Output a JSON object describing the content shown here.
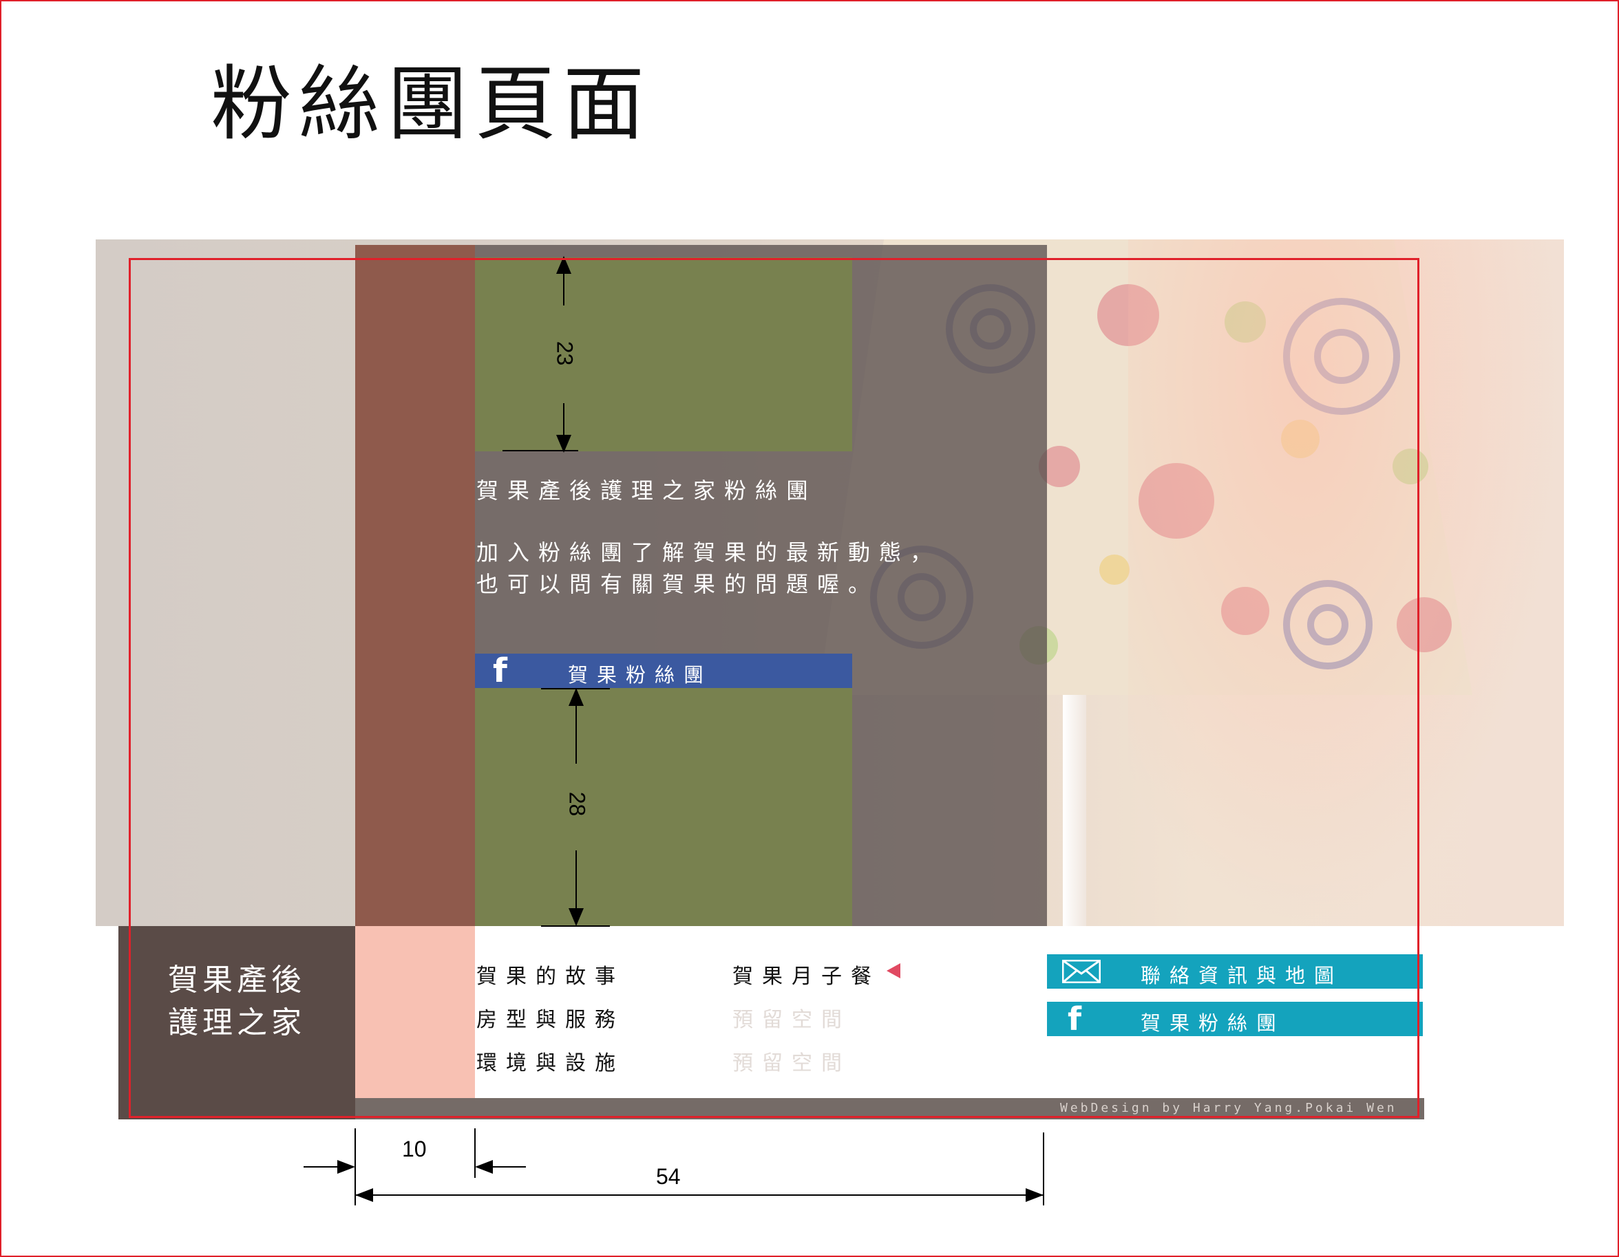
{
  "title": "粉絲團頁面",
  "fan_section": {
    "heading": "賀果產後護理之家粉絲團",
    "desc_line1": "加入粉絲團了解賀果的最新動態，",
    "desc_line2": "也可以問有關賀果的問題喔。",
    "fb_banner_label": "賀果粉絲團",
    "fb_icon_letter": "f"
  },
  "dimensions": {
    "top_green_height": "23",
    "bottom_green_height": "28",
    "sidebar_width": "10",
    "content_width": "54"
  },
  "footer": {
    "logo_line1": "賀果產後",
    "logo_line2": "護理之家",
    "nav": [
      {
        "label": "賀果的故事"
      },
      {
        "label": "房型與服務"
      },
      {
        "label": "環境與設施"
      }
    ],
    "nav_right": [
      {
        "label": "賀果月子餐"
      },
      {
        "label": "預留空間"
      },
      {
        "label": "預留空間"
      }
    ],
    "contact_label": "聯絡資訊與地圖",
    "fb_label": "賀果粉絲團",
    "credit": "WebDesign by Harry Yang.Pokai Wen"
  },
  "colors": {
    "sidebar_brown": "#8f5a4c",
    "green_block": "#78814f",
    "facebook_blue": "#3b59a0",
    "cta_cyan": "#14a3bd",
    "logo_box": "#5a4b47",
    "pink_block": "#f8c1b3",
    "guide_red": "#e0202a"
  },
  "icons": {
    "mail": "mail-icon",
    "facebook": "facebook-icon",
    "active_nav": "triangle-left-icon"
  }
}
